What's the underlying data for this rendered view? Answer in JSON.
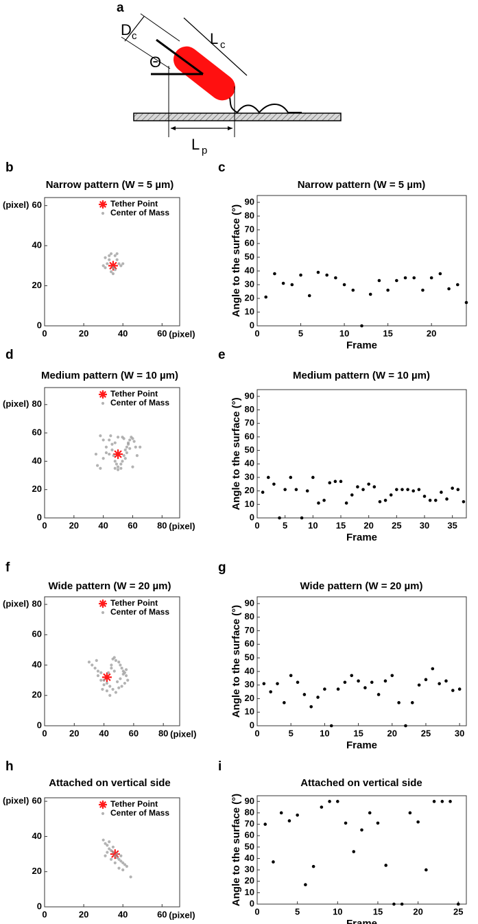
{
  "diagram": {
    "panel": "a",
    "labels": [
      {
        "main": "D",
        "sub": "c"
      },
      {
        "main": "L",
        "sub": "c"
      },
      {
        "main": "Θ"
      },
      {
        "main": "L",
        "sub": "p"
      }
    ]
  },
  "chart_data": [
    {
      "type": "scatter",
      "panel": "b",
      "title": "Narrow pattern (W = 5 µm)",
      "xlabel": "(pixel)",
      "ylabel": "(pixel)",
      "xlim": [
        0,
        69
      ],
      "ylim": [
        0,
        64
      ],
      "xticks": [
        0,
        20,
        40,
        60
      ],
      "yticks": [
        0,
        20,
        40,
        60
      ],
      "legend": "upper right",
      "series": [
        {
          "name": "Tether Point",
          "color": "#ff1a1a",
          "marker": "asterisk",
          "x": [
            35
          ],
          "values": [
            30
          ]
        },
        {
          "name": "Center of Mass",
          "color": "#999999",
          "marker": "dot",
          "x": [
            31,
            33,
            34,
            36,
            37,
            38,
            32,
            30,
            35,
            39,
            34,
            36,
            33,
            37,
            40,
            31,
            35
          ],
          "values": [
            34,
            35,
            36,
            35,
            33,
            31,
            31,
            30,
            29,
            30,
            27,
            28,
            33,
            36,
            31,
            29,
            26
          ]
        }
      ]
    },
    {
      "type": "scatter",
      "panel": "c",
      "title": "Narrow pattern (W = 5 µm)",
      "xlabel": "Frame",
      "ylabel": "Angle to the surface (°)",
      "xlim": [
        0,
        24
      ],
      "ylim": [
        0,
        95
      ],
      "xticks": [
        0,
        5,
        10,
        15,
        20
      ],
      "yticks": [
        0,
        10,
        20,
        30,
        40,
        50,
        60,
        70,
        80,
        90
      ],
      "color": "#000000",
      "x": [
        1,
        2,
        3,
        4,
        5,
        6,
        7,
        8,
        9,
        10,
        11,
        12,
        13,
        14,
        15,
        16,
        17,
        18,
        19,
        20,
        21,
        22,
        23,
        24
      ],
      "values": [
        21,
        38,
        31,
        30,
        37,
        22,
        39,
        37,
        35,
        30,
        26,
        0,
        23,
        33,
        26,
        33,
        35,
        35,
        26,
        35,
        38,
        27,
        30,
        17
      ]
    },
    {
      "type": "scatter",
      "panel": "d",
      "title": "Medium pattern (W = 10 µm)",
      "xlabel": "(pixel)",
      "ylabel": "(pixel)",
      "xlim": [
        0,
        92
      ],
      "ylim": [
        0,
        92
      ],
      "xticks": [
        0,
        20,
        40,
        60,
        80
      ],
      "yticks": [
        0,
        20,
        40,
        60,
        80
      ],
      "legend": "upper right",
      "series": [
        {
          "name": "Tether Point",
          "color": "#ff1a1a",
          "marker": "asterisk",
          "x": [
            50
          ],
          "values": [
            45
          ]
        },
        {
          "name": "Center of Mass",
          "color": "#999999",
          "marker": "dot",
          "x": [
            36,
            38,
            40,
            42,
            44,
            45,
            46,
            47,
            48,
            49,
            50,
            52,
            53,
            54,
            55,
            56,
            57,
            58,
            59,
            60,
            61,
            62,
            56,
            55,
            57,
            58,
            54,
            53,
            44,
            46,
            48,
            50,
            52,
            42,
            40,
            38,
            35,
            48,
            50,
            65,
            63,
            60
          ],
          "values": [
            37,
            35,
            42,
            50,
            55,
            58,
            52,
            44,
            40,
            38,
            36,
            35,
            40,
            44,
            48,
            50,
            53,
            55,
            57,
            56,
            54,
            50,
            46,
            42,
            52,
            49,
            56,
            57,
            45,
            48,
            35,
            34,
            38,
            46,
            55,
            58,
            45,
            53,
            57,
            50,
            44,
            36
          ]
        }
      ]
    },
    {
      "type": "scatter",
      "panel": "e",
      "title": "Medium pattern (W = 10 µm)",
      "xlabel": "Frame",
      "ylabel": "Angle to the surface (°)",
      "xlim": [
        0,
        37.5
      ],
      "ylim": [
        0,
        95
      ],
      "xticks": [
        0,
        5,
        10,
        15,
        20,
        25,
        30,
        35
      ],
      "yticks": [
        0,
        10,
        20,
        30,
        40,
        50,
        60,
        70,
        80,
        90
      ],
      "color": "#000000",
      "x": [
        1,
        2,
        3,
        4,
        5,
        6,
        7,
        8,
        9,
        10,
        11,
        12,
        13,
        14,
        15,
        16,
        17,
        18,
        19,
        20,
        21,
        22,
        23,
        24,
        25,
        26,
        27,
        28,
        29,
        30,
        31,
        32,
        33,
        34,
        35,
        36,
        37
      ],
      "values": [
        19,
        30,
        25,
        0,
        21,
        30,
        21,
        0,
        20,
        30,
        11,
        13,
        26,
        27,
        27,
        11,
        17,
        23,
        21,
        25,
        23,
        12,
        13,
        17,
        21,
        21,
        21,
        20,
        21,
        16,
        13,
        13,
        19,
        14,
        22,
        21,
        12
      ]
    },
    {
      "type": "scatter",
      "panel": "f",
      "title": "Wide pattern (W = 20 µm)",
      "xlabel": "(pixel)",
      "ylabel": "(pixel)",
      "xlim": [
        0,
        91
      ],
      "ylim": [
        0,
        85
      ],
      "xticks": [
        0,
        20,
        40,
        60,
        80
      ],
      "yticks": [
        0,
        20,
        40,
        60,
        80
      ],
      "legend": "upper right",
      "series": [
        {
          "name": "Tether Point",
          "color": "#ff1a1a",
          "marker": "asterisk",
          "x": [
            42
          ],
          "values": [
            32
          ]
        },
        {
          "name": "Center of Mass",
          "color": "#999999",
          "marker": "dot",
          "x": [
            30,
            32,
            34,
            36,
            38,
            40,
            42,
            44,
            45,
            46,
            47,
            48,
            50,
            51,
            52,
            53,
            54,
            55,
            56,
            54,
            52,
            50,
            48,
            46,
            44,
            42,
            40,
            38,
            36,
            49,
            51,
            53,
            55,
            45,
            47,
            43,
            39,
            35
          ],
          "values": [
            42,
            40,
            38,
            36,
            35,
            30,
            28,
            26,
            40,
            44,
            45,
            43,
            42,
            40,
            38,
            36,
            35,
            33,
            30,
            28,
            26,
            25,
            22,
            24,
            20,
            23,
            27,
            30,
            33,
            29,
            31,
            34,
            37,
            38,
            36,
            35,
            24,
            43
          ]
        }
      ]
    },
    {
      "type": "scatter",
      "panel": "g",
      "title": "Wide pattern (W = 20 µm)",
      "xlabel": "Frame",
      "ylabel": "Angle to the surface (°)",
      "xlim": [
        0,
        31
      ],
      "ylim": [
        0,
        95
      ],
      "xticks": [
        0,
        5,
        10,
        15,
        20,
        25,
        30
      ],
      "yticks": [
        0,
        10,
        20,
        30,
        40,
        50,
        60,
        70,
        80,
        90
      ],
      "color": "#000000",
      "x": [
        1,
        2,
        3,
        4,
        5,
        6,
        7,
        8,
        9,
        10,
        11,
        12,
        13,
        14,
        15,
        16,
        17,
        18,
        19,
        20,
        21,
        22,
        23,
        24,
        25,
        26,
        27,
        28,
        29,
        30
      ],
      "values": [
        31,
        25,
        31,
        17,
        37,
        32,
        23,
        14,
        21,
        27,
        0,
        27,
        32,
        37,
        33,
        28,
        32,
        23,
        33,
        37,
        17,
        0,
        17,
        30,
        34,
        42,
        31,
        33,
        26,
        27
      ]
    },
    {
      "type": "scatter",
      "panel": "h",
      "title": "Attached on vertical side",
      "xlabel": "(pixel)",
      "ylabel": "(pixel)",
      "xlim": [
        0,
        69
      ],
      "ylim": [
        0,
        62
      ],
      "xticks": [
        0,
        20,
        40,
        60
      ],
      "yticks": [
        0,
        20,
        40,
        60
      ],
      "legend": "upper right",
      "series": [
        {
          "name": "Tether Point",
          "color": "#ff1a1a",
          "marker": "asterisk",
          "x": [
            36
          ],
          "values": [
            30
          ]
        },
        {
          "name": "Center of Mass",
          "color": "#999999",
          "marker": "dot",
          "x": [
            30,
            31,
            32,
            33,
            34,
            35,
            36,
            37,
            38,
            39,
            40,
            41,
            42,
            44,
            33,
            35,
            37,
            34,
            36,
            38,
            32,
            31,
            39,
            40
          ],
          "values": [
            38,
            36,
            35,
            33,
            32,
            31,
            29,
            28,
            27,
            26,
            25,
            24,
            23,
            17,
            37,
            34,
            30,
            27,
            25,
            22,
            31,
            29,
            29,
            21
          ]
        }
      ]
    },
    {
      "type": "scatter",
      "panel": "i",
      "title": "Attached on vertical side",
      "xlabel": "Frame",
      "ylabel": "Angle to the surface (°)",
      "xlim": [
        0,
        26
      ],
      "ylim": [
        0,
        95
      ],
      "xticks": [
        0,
        5,
        10,
        15,
        20,
        25
      ],
      "yticks": [
        0,
        10,
        20,
        30,
        40,
        50,
        60,
        70,
        80,
        90
      ],
      "color": "#000000",
      "x": [
        1,
        2,
        3,
        4,
        5,
        6,
        7,
        8,
        9,
        10,
        11,
        12,
        13,
        14,
        15,
        16,
        17,
        18,
        19,
        20,
        21,
        22,
        23,
        24,
        25
      ],
      "values": [
        70,
        37,
        80,
        73,
        78,
        17,
        33,
        85,
        90,
        90,
        71,
        46,
        65,
        80,
        71,
        34,
        0,
        0,
        80,
        72,
        30,
        90,
        90,
        90,
        0
      ]
    }
  ]
}
